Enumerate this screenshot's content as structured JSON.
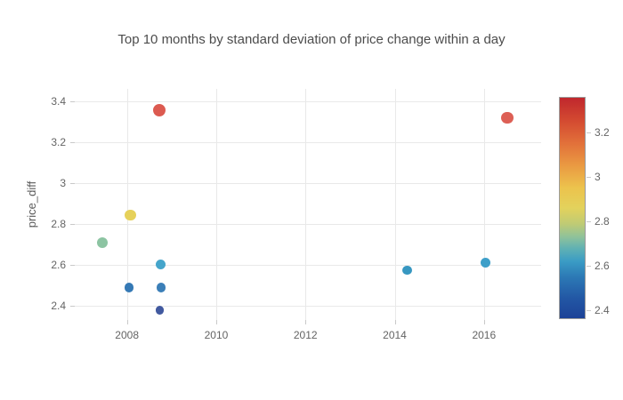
{
  "title": "Top 10 months by standard deviation of price change within a day",
  "chart_data": {
    "type": "scatter",
    "title": "Top 10 months by standard deviation of price change within a day",
    "xlabel": "",
    "ylabel": "price_diff",
    "grid": true,
    "legend": "colorbar-right",
    "xaxis": {
      "range": [
        2006.83,
        2017.28
      ],
      "tick_values": [
        2008,
        2010,
        2012,
        2014,
        2016
      ],
      "tick_labels": [
        "2008",
        "2010",
        "2012",
        "2014",
        "2016"
      ]
    },
    "yaxis": {
      "title": "price_diff",
      "range": [
        2.332,
        3.46
      ],
      "tick_values": [
        2.4,
        2.6,
        2.8,
        3.0,
        3.2,
        3.4
      ],
      "tick_labels": [
        "2.4",
        "2.6",
        "2.8",
        "3",
        "3.2",
        "3.4"
      ]
    },
    "points": [
      {
        "x": 2008.73,
        "y": 3.355,
        "color": "#dc5a50",
        "size": 14
      },
      {
        "x": 2016.52,
        "y": 3.32,
        "color": "#dd5f55",
        "size": 13.5
      },
      {
        "x": 2008.08,
        "y": 2.845,
        "color": "#e6d15a",
        "size": 12.5
      },
      {
        "x": 2007.44,
        "y": 2.71,
        "color": "#8cc4a2",
        "size": 12
      },
      {
        "x": 2008.75,
        "y": 2.605,
        "color": "#45a5cb",
        "size": 11
      },
      {
        "x": 2016.04,
        "y": 2.61,
        "color": "#3e9fc9",
        "size": 11
      },
      {
        "x": 2014.28,
        "y": 2.575,
        "color": "#3797c1",
        "size": 10.5
      },
      {
        "x": 2008.05,
        "y": 2.49,
        "color": "#3579b5",
        "size": 10.5
      },
      {
        "x": 2008.76,
        "y": 2.49,
        "color": "#3b7fb8",
        "size": 10.5
      },
      {
        "x": 2008.73,
        "y": 2.38,
        "color": "#41599f",
        "size": 9.5
      }
    ],
    "colorbar": {
      "range": [
        2.364,
        3.356
      ],
      "tick_values": [
        2.4,
        2.6,
        2.8,
        3.0,
        3.2
      ],
      "tick_labels": [
        "2.4",
        "2.6",
        "2.8",
        "3",
        "3.2"
      ],
      "gradient_stops": [
        {
          "value": 2.364,
          "color": "#1c4297"
        },
        {
          "value": 2.45,
          "color": "#2256a4"
        },
        {
          "value": 2.55,
          "color": "#2c79b5"
        },
        {
          "value": 2.62,
          "color": "#3a9cc5"
        },
        {
          "value": 2.68,
          "color": "#62b2b2"
        },
        {
          "value": 2.73,
          "color": "#8fc29a"
        },
        {
          "value": 2.79,
          "color": "#c0cb74"
        },
        {
          "value": 2.86,
          "color": "#e3d25c"
        },
        {
          "value": 2.95,
          "color": "#ecc34d"
        },
        {
          "value": 3.05,
          "color": "#ea9a42"
        },
        {
          "value": 3.15,
          "color": "#e2713a"
        },
        {
          "value": 3.25,
          "color": "#d44b31"
        },
        {
          "value": 3.356,
          "color": "#c0272d"
        }
      ]
    },
    "colors": {
      "grid": "#e9e9e9",
      "tick_text": "#646464",
      "title_text": "#4c4c4c",
      "colorbar_border": "#9b9b9b"
    }
  }
}
